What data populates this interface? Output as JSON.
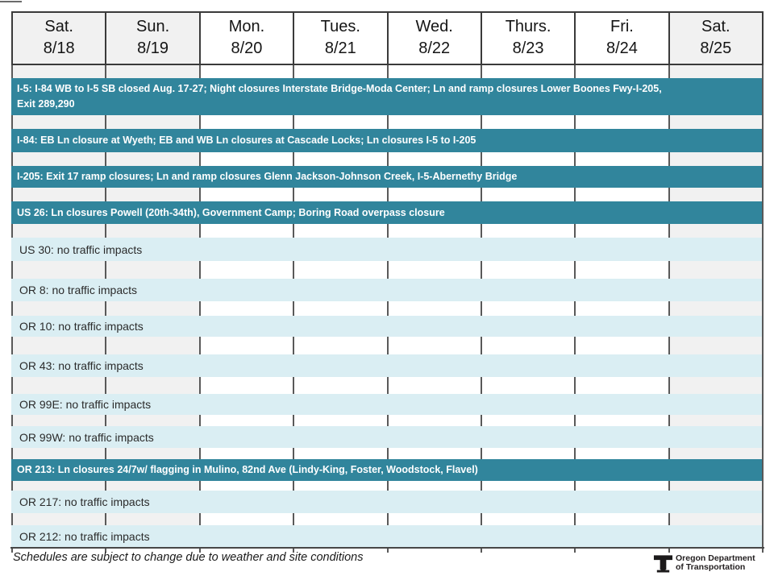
{
  "header": {
    "days": [
      {
        "label": "Sat.",
        "date": "8/18",
        "weekend": true
      },
      {
        "label": "Sun.",
        "date": "8/19",
        "weekend": true
      },
      {
        "label": "Mon.",
        "date": "8/20",
        "weekend": false
      },
      {
        "label": "Tues.",
        "date": "8/21",
        "weekend": false
      },
      {
        "label": "Wed.",
        "date": "8/22",
        "weekend": false
      },
      {
        "label": "Thurs.",
        "date": "8/23",
        "weekend": false
      },
      {
        "label": "Fri.",
        "date": "8/24",
        "weekend": false
      },
      {
        "label": "Sat.",
        "date": "8/25",
        "weekend": true
      }
    ]
  },
  "rows": [
    {
      "road": "I-5",
      "type": "closure",
      "lines": [
        "I-5: I-84 WB to I-5 SB closed Aug. 17-27; Night closures Interstate Bridge-Moda Center; Ln and ramp closures Lower Boones Fwy-I-205,",
        "Exit 289,290"
      ]
    },
    {
      "road": "I-84",
      "type": "closure",
      "lines": [
        "I-84: EB Ln closure at Wyeth; EB and WB Ln closures at Cascade Locks; Ln closures I-5 to I-205"
      ]
    },
    {
      "road": "I-205",
      "type": "closure",
      "lines": [
        "I-205: Exit 17 ramp closures; Ln and ramp closures Glenn Jackson-Johnson Creek, I-5-Abernethy Bridge"
      ]
    },
    {
      "road": "US 26",
      "type": "closure",
      "lines": [
        "US 26: Ln closures Powell (20th-34th), Government Camp; Boring Road overpass closure"
      ]
    },
    {
      "road": "US 30",
      "type": "clear",
      "lines": [
        "US 30: no traffic impacts"
      ]
    },
    {
      "road": "OR 8",
      "type": "clear",
      "lines": [
        "OR 8: no traffic impacts"
      ]
    },
    {
      "road": "OR 10",
      "type": "clear",
      "lines": [
        "OR 10: no traffic impacts"
      ]
    },
    {
      "road": "OR 43",
      "type": "clear",
      "lines": [
        "OR 43: no traffic impacts"
      ]
    },
    {
      "road": "OR 99E",
      "type": "clear",
      "lines": [
        "OR 99E: no traffic impacts"
      ]
    },
    {
      "road": "OR 99W",
      "type": "clear",
      "lines": [
        "OR 99W: no traffic impacts"
      ]
    },
    {
      "road": "OR 213",
      "type": "closure",
      "lines": [
        "OR 213: Ln closures 24/7w/ flagging in Mulino, 82nd Ave (Lindy-King, Foster, Woodstock, Flavel)"
      ]
    },
    {
      "road": "OR 217",
      "type": "clear",
      "lines": [
        "OR 217: no traffic impacts"
      ]
    },
    {
      "road": "OR 212",
      "type": "clear",
      "lines": [
        "OR 212: no traffic impacts"
      ]
    }
  ],
  "footer": {
    "note": "Schedules are subject to change due to weather and site conditions",
    "logo_line1": "Oregon Department",
    "logo_line2": "of Transportation"
  },
  "colors": {
    "closure_bar": "#31859c",
    "clear_bar": "#daeef3",
    "weekend_column": "#f1f1f1",
    "grid_tick": "#595959"
  },
  "chart_data": {
    "type": "table",
    "title": "Weekly traffic impact schedule Aug. 18-25",
    "categories": [
      "Sat. 8/18",
      "Sun. 8/19",
      "Mon. 8/20",
      "Tues. 8/21",
      "Wed. 8/22",
      "Thurs. 8/23",
      "Fri. 8/24",
      "Sat. 8/25"
    ],
    "legend_position": "none",
    "grid": true,
    "series": [
      {
        "name": "I-5",
        "status": "closure",
        "span_days": 8,
        "note": "I-84 WB to I-5 SB closed Aug. 17-27; Night closures Interstate Bridge-Moda Center; Ln and ramp closures Lower Boones Fwy-I-205, Exit 289,290"
      },
      {
        "name": "I-84",
        "status": "closure",
        "span_days": 8,
        "note": "EB Ln closure at Wyeth; EB and WB Ln closures at Cascade Locks; Ln closures I-5 to I-205"
      },
      {
        "name": "I-205",
        "status": "closure",
        "span_days": 8,
        "note": "Exit 17 ramp closures; Ln and ramp closures Glenn Jackson-Johnson Creek, I-5-Abernethy Bridge"
      },
      {
        "name": "US 26",
        "status": "closure",
        "span_days": 8,
        "note": "Ln closures Powell (20th-34th), Government Camp; Boring Road overpass closure"
      },
      {
        "name": "US 30",
        "status": "clear",
        "span_days": 8,
        "note": "no traffic impacts"
      },
      {
        "name": "OR 8",
        "status": "clear",
        "span_days": 8,
        "note": "no traffic impacts"
      },
      {
        "name": "OR 10",
        "status": "clear",
        "span_days": 8,
        "note": "no traffic impacts"
      },
      {
        "name": "OR 43",
        "status": "clear",
        "span_days": 8,
        "note": "no traffic impacts"
      },
      {
        "name": "OR 99E",
        "status": "clear",
        "span_days": 8,
        "note": "no traffic impacts"
      },
      {
        "name": "OR 99W",
        "status": "clear",
        "span_days": 8,
        "note": "no traffic impacts"
      },
      {
        "name": "OR 213",
        "status": "closure",
        "span_days": 8,
        "note": "Ln closures 24/7w/ flagging in Mulino, 82nd Ave (Lindy-King, Foster, Woodstock, Flavel)"
      },
      {
        "name": "OR 217",
        "status": "clear",
        "span_days": 8,
        "note": "no traffic impacts"
      },
      {
        "name": "OR 212",
        "status": "clear",
        "span_days": 8,
        "note": "no traffic impacts"
      }
    ]
  }
}
